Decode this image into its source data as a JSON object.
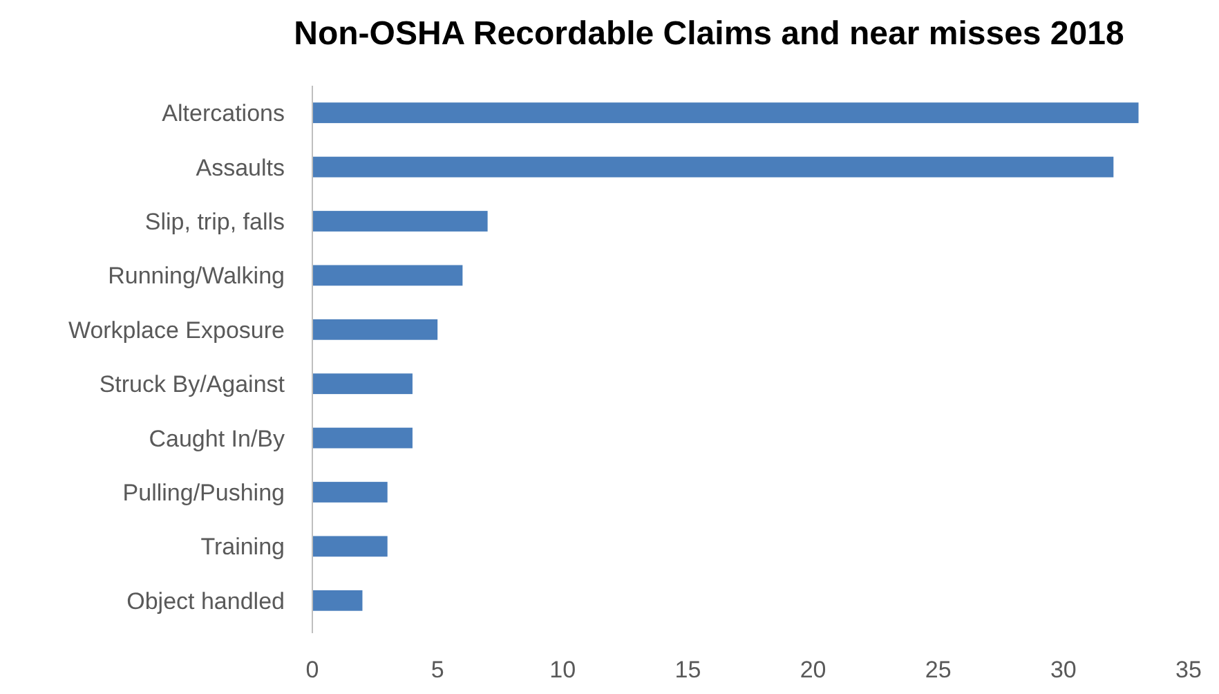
{
  "chart_data": {
    "type": "bar",
    "orientation": "horizontal",
    "title": "Non-OSHA Recordable Claims and near misses 2018",
    "categories": [
      "Altercations",
      "Assaults",
      "Slip, trip, falls",
      "Running/Walking",
      "Workplace Exposure",
      "Struck By/Against",
      "Caught In/By",
      "Pulling/Pushing",
      "Training",
      "Object handled"
    ],
    "values": [
      33,
      32,
      7,
      6,
      5,
      4,
      4,
      3,
      3,
      2
    ],
    "color": "#4a7ebb",
    "xlim": [
      0,
      35
    ],
    "xticks": [
      0,
      5,
      10,
      15,
      20,
      25,
      30,
      35
    ]
  }
}
